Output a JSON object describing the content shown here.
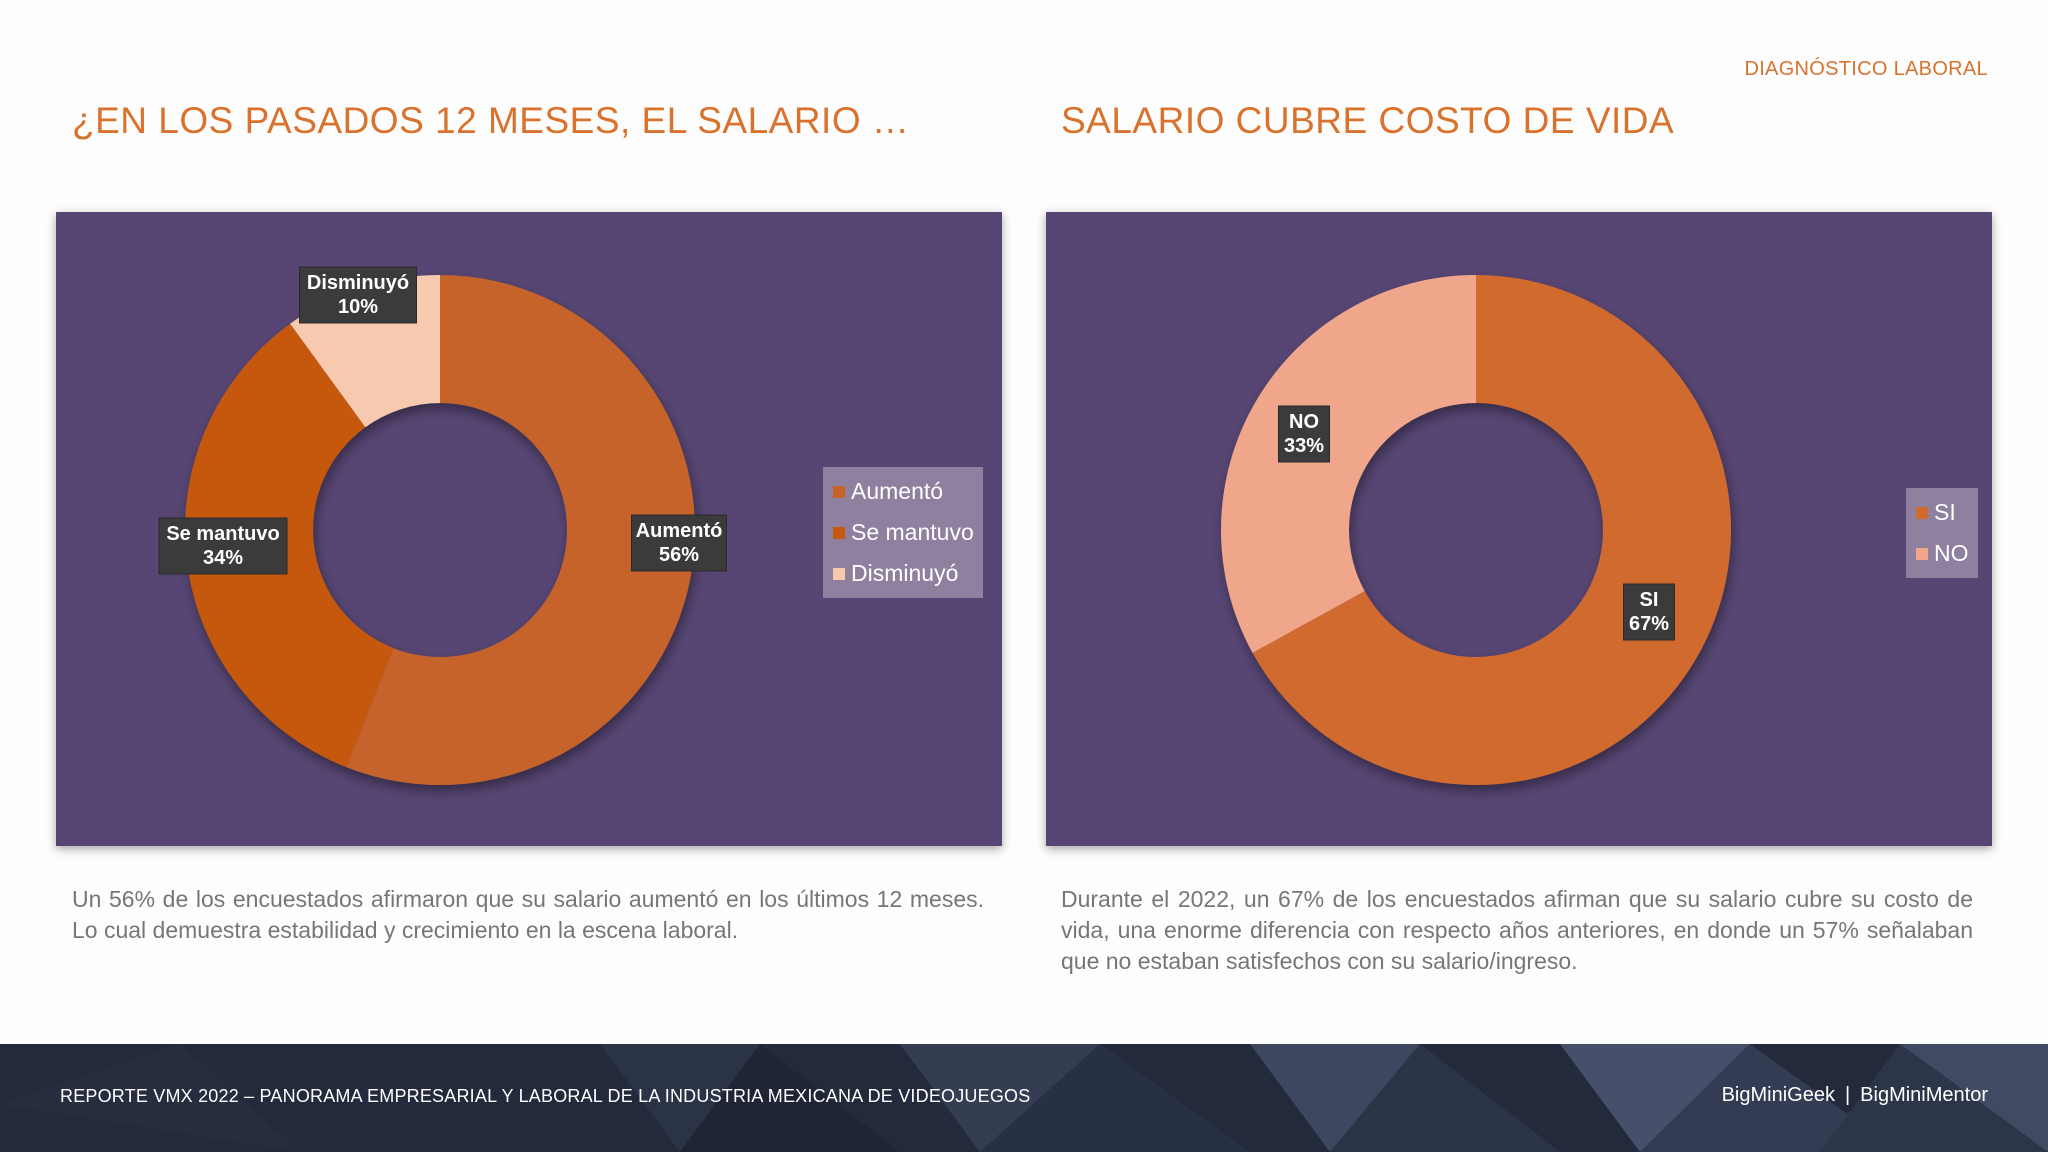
{
  "header": {
    "section_label": "DIAGNÓSTICO LABORAL"
  },
  "left_panel": {
    "title": "¿EN LOS PASADOS 12 MESES, EL SALARIO …",
    "description": "Un 56% de los encuestados afirmaron que su salario aumentó en los últimos 12 meses. Lo cual demuestra estabilidad y crecimiento en la escena laboral."
  },
  "right_panel": {
    "title": "SALARIO CUBRE COSTO DE VIDA",
    "description": "Durante el 2022, un 67% de los encuestados afirman que su salario cubre su costo de vida, una enorme diferencia con respecto años anteriores, en donde un 57% señalaban que no estaban satisfechos con su salario/ingreso."
  },
  "chart_data": [
    {
      "type": "pie",
      "donut": true,
      "title": "¿EN LOS PASADOS 12 MESES, EL SALARIO …",
      "categories": [
        "Aumentó",
        "Se mantuvo",
        "Disminuyó"
      ],
      "values": [
        56,
        34,
        10
      ],
      "value_labels": [
        "56%",
        "34%",
        "10%"
      ],
      "colors": [
        "#c5632a",
        "#c5590f",
        "#f7c9ae"
      ],
      "legend": "right"
    },
    {
      "type": "pie",
      "donut": true,
      "title": "SALARIO CUBRE COSTO DE VIDA",
      "categories": [
        "SI",
        "NO"
      ],
      "values": [
        67,
        33
      ],
      "value_labels": [
        "67%",
        "33%"
      ],
      "colors": [
        "#d06a2e",
        "#f0a68b"
      ],
      "legend": "right"
    }
  ],
  "footer": {
    "report_title": "REPORTE VMX 2022 – PANORAMA EMPRESARIAL Y LABORAL DE LA INDUSTRIA MEXICANA DE VIDEOJUEGOS",
    "brand_1": "BigMiniGeek",
    "separator": "|",
    "brand_2": "BigMiniMentor"
  },
  "colors": {
    "accent": "#d9722d",
    "chart_background": "#574674",
    "legend_background": "#8f809f",
    "footer_background": "#232a3b"
  }
}
